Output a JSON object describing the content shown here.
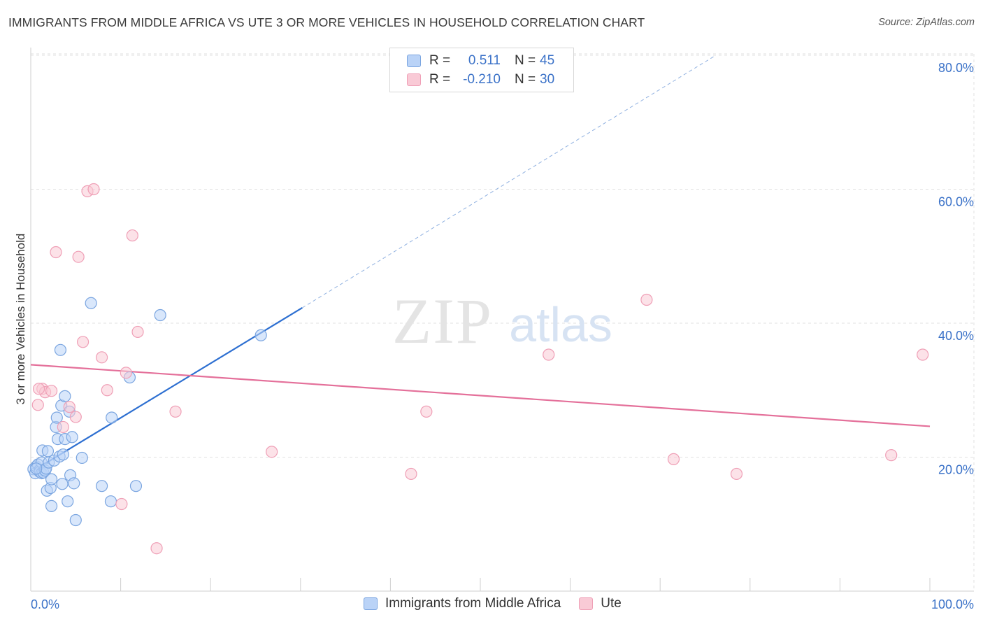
{
  "title": "IMMIGRANTS FROM MIDDLE AFRICA VS UTE 3 OR MORE VEHICLES IN HOUSEHOLD CORRELATION CHART",
  "source": "Source: ZipAtlas.com",
  "watermark": {
    "zip": "ZIP",
    "atlas": "atlas"
  },
  "colors": {
    "blue_fill": "#bad3f7",
    "blue_stroke": "#7aa5e0",
    "blue_line": "#2d6fd1",
    "pink_fill": "#f9cad6",
    "pink_stroke": "#ef9fb6",
    "pink_line": "#e4709a",
    "value_text": "#3b72c8"
  },
  "legend": [
    {
      "r_label": "R =",
      "r_value": "0.511",
      "n_label": "N =",
      "n_value": "45"
    },
    {
      "r_label": "R =",
      "r_value": "-0.210",
      "n_label": "N =",
      "n_value": "30"
    }
  ],
  "chart_data": {
    "type": "scatter",
    "title": "IMMIGRANTS FROM MIDDLE AFRICA VS UTE 3 OR MORE VEHICLES IN HOUSEHOLD CORRELATION CHART",
    "xlabel": "",
    "ylabel": "3 or more Vehicles in Household",
    "xlim": [
      0,
      100
    ],
    "ylim": [
      0,
      80
    ],
    "x_tick_labels": [
      "0.0%",
      "100.0%"
    ],
    "y_ticks": [
      20,
      40,
      60,
      80
    ],
    "y_tick_labels": [
      "20.0%",
      "40.0%",
      "60.0%",
      "80.0%"
    ],
    "grid": true,
    "legend_position": "top-center",
    "series": [
      {
        "name": "Immigrants from Middle Africa",
        "color": "#7aa5e0",
        "points": [
          [
            0.3,
            18.2
          ],
          [
            0.5,
            17.6
          ],
          [
            0.6,
            18.6
          ],
          [
            0.8,
            18.9
          ],
          [
            1.0,
            18.1
          ],
          [
            1.0,
            17.8
          ],
          [
            1.2,
            19.2
          ],
          [
            1.2,
            17.6
          ],
          [
            1.3,
            21.0
          ],
          [
            1.4,
            17.7
          ],
          [
            1.6,
            18.0
          ],
          [
            1.7,
            18.3
          ],
          [
            1.8,
            15.0
          ],
          [
            1.9,
            20.9
          ],
          [
            2.0,
            19.2
          ],
          [
            2.2,
            15.4
          ],
          [
            2.3,
            12.7
          ],
          [
            2.3,
            16.7
          ],
          [
            2.6,
            19.5
          ],
          [
            2.8,
            24.5
          ],
          [
            2.9,
            25.9
          ],
          [
            3.0,
            22.7
          ],
          [
            3.2,
            20.1
          ],
          [
            3.3,
            36.0
          ],
          [
            3.4,
            27.7
          ],
          [
            3.5,
            16.0
          ],
          [
            3.6,
            20.4
          ],
          [
            3.8,
            29.1
          ],
          [
            3.8,
            22.7
          ],
          [
            4.1,
            13.4
          ],
          [
            4.3,
            26.8
          ],
          [
            4.4,
            17.3
          ],
          [
            4.6,
            23.0
          ],
          [
            4.8,
            16.1
          ],
          [
            5.0,
            10.6
          ],
          [
            5.7,
            19.9
          ],
          [
            6.7,
            43.0
          ],
          [
            7.9,
            15.7
          ],
          [
            8.9,
            13.4
          ],
          [
            9.0,
            25.9
          ],
          [
            11.0,
            31.9
          ],
          [
            11.7,
            15.7
          ],
          [
            14.4,
            41.2
          ],
          [
            25.6,
            38.2
          ],
          [
            0.6,
            18.3
          ]
        ]
      },
      {
        "name": "Ute",
        "color": "#ef9fb6",
        "points": [
          [
            0.8,
            27.8
          ],
          [
            1.3,
            30.2
          ],
          [
            1.6,
            29.7
          ],
          [
            2.3,
            29.9
          ],
          [
            2.8,
            50.6
          ],
          [
            3.6,
            24.5
          ],
          [
            4.3,
            27.5
          ],
          [
            5.0,
            26.0
          ],
          [
            5.3,
            49.9
          ],
          [
            5.8,
            37.2
          ],
          [
            6.3,
            59.7
          ],
          [
            7.0,
            60.0
          ],
          [
            7.9,
            34.9
          ],
          [
            8.5,
            30.0
          ],
          [
            10.1,
            13.0
          ],
          [
            10.6,
            32.6
          ],
          [
            11.3,
            53.1
          ],
          [
            11.9,
            38.7
          ],
          [
            14.0,
            6.4
          ],
          [
            16.1,
            26.8
          ],
          [
            26.8,
            20.8
          ],
          [
            42.3,
            17.5
          ],
          [
            44.0,
            26.8
          ],
          [
            57.6,
            35.3
          ],
          [
            68.5,
            43.5
          ],
          [
            71.5,
            19.7
          ],
          [
            78.5,
            17.5
          ],
          [
            95.7,
            20.3
          ],
          [
            99.2,
            35.3
          ],
          [
            0.9,
            30.2
          ]
        ]
      }
    ],
    "trendlines": [
      {
        "series": "Immigrants from Middle Africa",
        "x": [
          0.2,
          30.2
        ],
        "y": [
          17.9,
          42.3
        ],
        "dashed_extension_to": [
          76.2,
          80.0
        ]
      },
      {
        "series": "Ute",
        "x": [
          0.0,
          100.0
        ],
        "y": [
          33.8,
          24.6
        ]
      }
    ]
  },
  "bottom_legend": [
    {
      "label": "Immigrants from Middle Africa"
    },
    {
      "label": "Ute"
    }
  ]
}
